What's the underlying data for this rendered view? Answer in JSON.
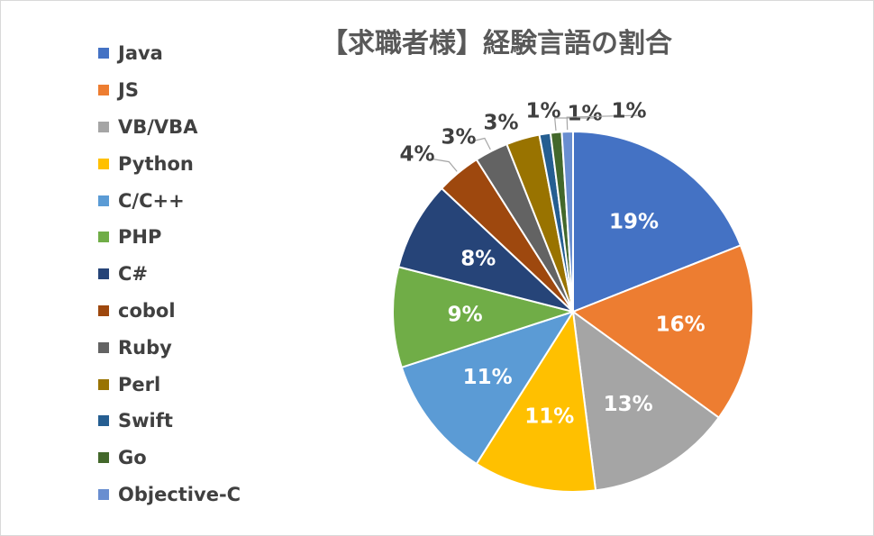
{
  "chart_data": {
    "type": "pie",
    "title": "【求職者様】経験言語の割合",
    "legend_position": "left",
    "categories": [
      "Java",
      "JS",
      "VB/VBA",
      "Python",
      "C/C++",
      "PHP",
      "C#",
      "cobol",
      "Ruby",
      "Perl",
      "Swift",
      "Go",
      "Objective-C"
    ],
    "values": [
      19,
      16,
      13,
      11,
      11,
      9,
      8,
      4,
      3,
      3,
      1,
      1,
      1
    ],
    "labels": [
      "19%",
      "16%",
      "13%",
      "11%",
      "11%",
      "9%",
      "8%",
      "4%",
      "3%",
      "3%",
      "1%",
      "1%",
      "1%"
    ],
    "colors": [
      "#4472C4",
      "#ED7D31",
      "#A5A5A5",
      "#FFC000",
      "#5B9BD5",
      "#70AD47",
      "#264478",
      "#9E480E",
      "#636363",
      "#997300",
      "#255E91",
      "#43682B",
      "#698ED0"
    ]
  }
}
